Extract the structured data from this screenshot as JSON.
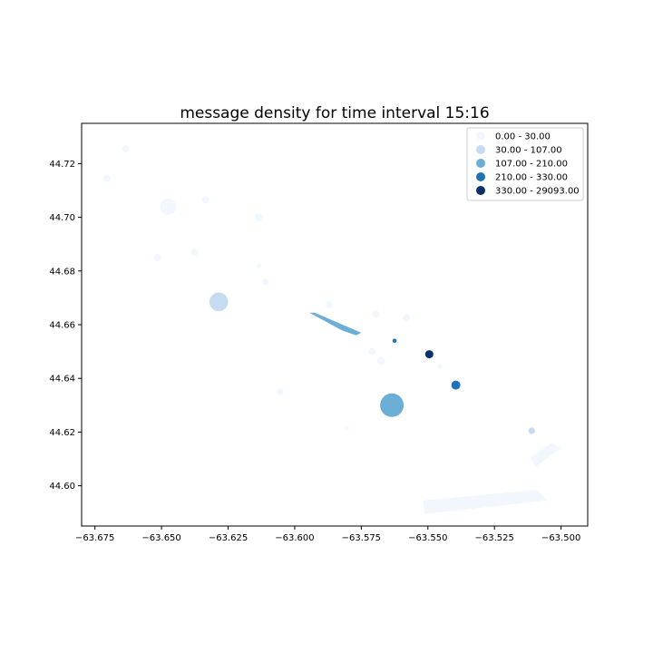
{
  "chart_data": {
    "type": "scatter",
    "title": "message density for time interval 15:16",
    "xlabel": "",
    "ylabel": "",
    "xlim": [
      -63.68,
      -63.49
    ],
    "ylim": [
      44.585,
      44.735
    ],
    "x_ticks": [
      -63.675,
      -63.65,
      -63.625,
      -63.6,
      -63.575,
      -63.55,
      -63.525,
      -63.5
    ],
    "x_tick_labels": [
      "−63.675",
      "−63.650",
      "−63.625",
      "−63.600",
      "−63.575",
      "−63.550",
      "−63.525",
      "−63.500"
    ],
    "y_ticks": [
      44.6,
      44.62,
      44.64,
      44.66,
      44.68,
      44.7,
      44.72
    ],
    "y_tick_labels": [
      "44.60",
      "44.62",
      "44.64",
      "44.66",
      "44.68",
      "44.70",
      "44.72"
    ],
    "grid": false,
    "legend_position": "top-right",
    "classes": [
      {
        "label": "0.00 - 30.00",
        "color": "#f2f7fd"
      },
      {
        "label": "30.00 - 107.00",
        "color": "#c6dbef"
      },
      {
        "label": "107.00 - 210.00",
        "color": "#6baed6"
      },
      {
        "label": "210.00 - 330.00",
        "color": "#2171b5"
      },
      {
        "label": "330.00 - 29093.00",
        "color": "#08306b"
      }
    ],
    "points": [
      {
        "lon": -63.6635,
        "lat": 44.7255,
        "class": 0,
        "relsize": 0.45
      },
      {
        "lon": -63.6705,
        "lat": 44.7145,
        "class": 0,
        "relsize": 0.45
      },
      {
        "lon": -63.6475,
        "lat": 44.704,
        "class": 0,
        "relsize": 1.0
      },
      {
        "lon": -63.6335,
        "lat": 44.7065,
        "class": 0,
        "relsize": 0.45
      },
      {
        "lon": -63.6135,
        "lat": 44.7,
        "class": 0,
        "relsize": 0.5
      },
      {
        "lon": -63.6515,
        "lat": 44.685,
        "class": 0,
        "relsize": 0.45
      },
      {
        "lon": -63.6375,
        "lat": 44.687,
        "class": 0,
        "relsize": 0.45
      },
      {
        "lon": -63.6135,
        "lat": 44.682,
        "class": 0,
        "relsize": 0.3
      },
      {
        "lon": -63.611,
        "lat": 44.676,
        "class": 0,
        "relsize": 0.4
      },
      {
        "lon": -63.6285,
        "lat": 44.6685,
        "class": 1,
        "relsize": 1.15
      },
      {
        "lon": -63.587,
        "lat": 44.6675,
        "class": 0,
        "relsize": 0.45
      },
      {
        "lon": -63.5695,
        "lat": 44.664,
        "class": 0,
        "relsize": 0.45
      },
      {
        "lon": -63.558,
        "lat": 44.6625,
        "class": 0,
        "relsize": 0.45
      },
      {
        "lon": -63.5625,
        "lat": 44.654,
        "class": 3,
        "relsize": 0.25
      },
      {
        "lon": -63.571,
        "lat": 44.65,
        "class": 0,
        "relsize": 0.45
      },
      {
        "lon": -63.5675,
        "lat": 44.6465,
        "class": 0,
        "relsize": 0.5
      },
      {
        "lon": -63.5495,
        "lat": 44.649,
        "class": 4,
        "relsize": 0.5
      },
      {
        "lon": -63.5455,
        "lat": 44.6445,
        "class": 0,
        "relsize": 0.3
      },
      {
        "lon": -63.5395,
        "lat": 44.6375,
        "class": 3,
        "relsize": 0.55
      },
      {
        "lon": -63.6055,
        "lat": 44.635,
        "class": 0,
        "relsize": 0.45
      },
      {
        "lon": -63.5635,
        "lat": 44.63,
        "class": 2,
        "relsize": 1.45
      },
      {
        "lon": -63.5805,
        "lat": 44.6215,
        "class": 0,
        "relsize": 0.3
      },
      {
        "lon": -63.511,
        "lat": 44.6205,
        "class": 1,
        "relsize": 0.4
      }
    ],
    "polygons": [
      {
        "class": 2,
        "coords": [
          [
            -63.5945,
            44.6645
          ],
          [
            -63.5925,
            44.6645
          ],
          [
            -63.575,
            44.657
          ],
          [
            -63.577,
            44.656
          ],
          [
            -63.5825,
            44.658
          ]
        ]
      },
      {
        "class": 0,
        "coords": [
          [
            -63.5115,
            44.6105
          ],
          [
            -63.5035,
            44.616
          ],
          [
            -63.5,
            44.614
          ],
          [
            -63.5095,
            44.607
          ]
        ]
      },
      {
        "class": 0,
        "coords": [
          [
            -63.552,
            44.5945
          ],
          [
            -63.509,
            44.5985
          ],
          [
            -63.505,
            44.5945
          ],
          [
            -63.551,
            44.5895
          ]
        ]
      }
    ]
  }
}
